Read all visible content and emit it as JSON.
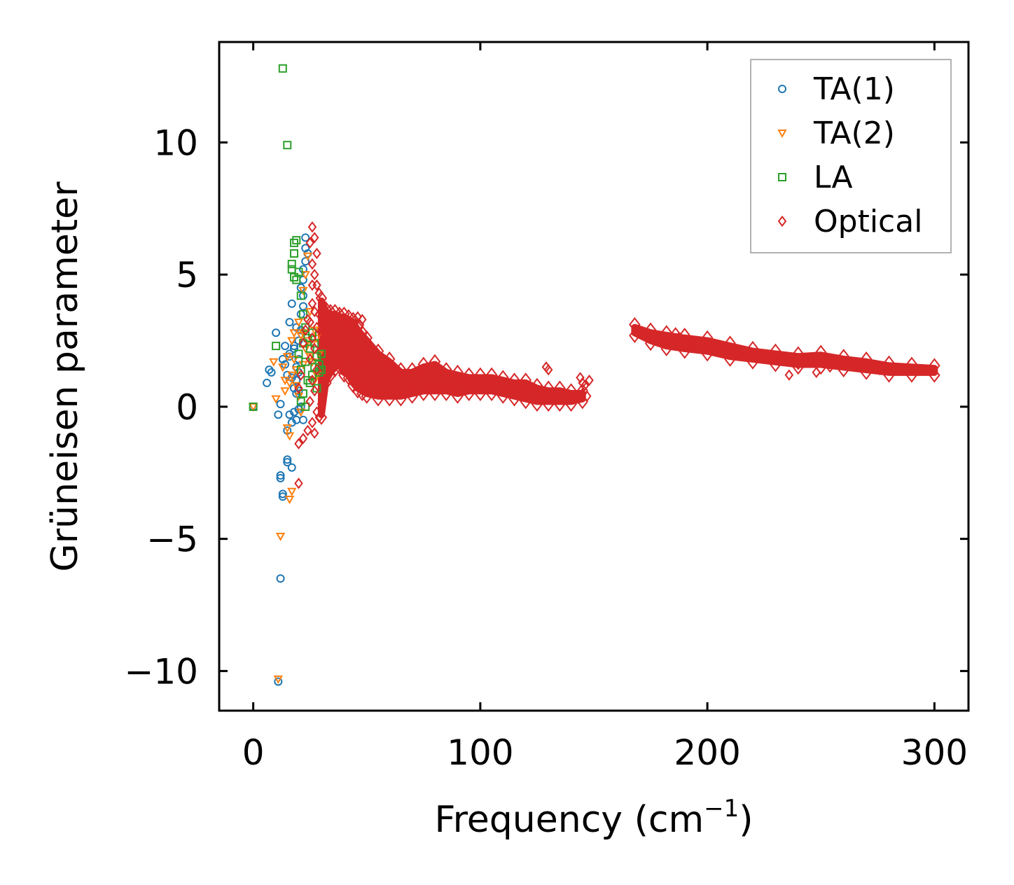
{
  "chart_data": {
    "type": "scatter",
    "title": "",
    "xlabel": "Frequency (cm",
    "xlabel_sup": "−1",
    "xlabel_close": ")",
    "ylabel": "Grüneisen parameter",
    "xlim": [
      -15,
      315
    ],
    "ylim": [
      -11.5,
      13.8
    ],
    "x_ticks": [
      0,
      100,
      200,
      300
    ],
    "x_tick_labels": [
      "0",
      "100",
      "200",
      "300"
    ],
    "y_ticks": [
      -10,
      -5,
      0,
      5,
      10
    ],
    "y_tick_labels": [
      "−10",
      "−5",
      "0",
      "5",
      "10"
    ],
    "grid": false,
    "legend_position": "top-right",
    "series": [
      {
        "name": "TA(1)",
        "marker": "circle",
        "color": "#1f77b4",
        "points": [
          [
            0,
            0
          ],
          [
            10,
            2.8
          ],
          [
            8,
            1.3
          ],
          [
            7,
            1.4
          ],
          [
            6,
            0.9
          ],
          [
            11,
            -0.3
          ],
          [
            12,
            0.1
          ],
          [
            12,
            -2.6
          ],
          [
            12,
            -2.7
          ],
          [
            13,
            -3.4
          ],
          [
            13,
            -3.3
          ],
          [
            15,
            -2.0
          ],
          [
            15,
            -2.1
          ],
          [
            17,
            -2.3
          ],
          [
            15,
            -0.9
          ],
          [
            12,
            -6.5
          ],
          [
            11,
            -10.4
          ],
          [
            14,
            1.6
          ],
          [
            16,
            2.0
          ],
          [
            17,
            3.9
          ],
          [
            16,
            3.2
          ],
          [
            18,
            2.2
          ],
          [
            19,
            1.0
          ],
          [
            20,
            0.6
          ],
          [
            21,
            4.5
          ],
          [
            22,
            5.2
          ],
          [
            23,
            6.4
          ],
          [
            22,
            3.8
          ],
          [
            20,
            2.5
          ],
          [
            19,
            1.5
          ],
          [
            21,
            0.0
          ],
          [
            22,
            -0.5
          ],
          [
            18,
            -0.2
          ],
          [
            17,
            -0.6
          ],
          [
            24,
            5.8
          ],
          [
            20,
            1.8
          ],
          [
            21,
            2.9
          ],
          [
            19,
            0.5
          ],
          [
            23,
            6.0
          ],
          [
            22,
            4.8
          ],
          [
            18,
            2.3
          ],
          [
            16,
            1.9
          ],
          [
            20,
            -0.1
          ],
          [
            13,
            1.8
          ],
          [
            14,
            2.3
          ],
          [
            15,
            1.2
          ],
          [
            17,
            1.1
          ],
          [
            19,
            3.0
          ],
          [
            21,
            3.5
          ],
          [
            23,
            5.5
          ],
          [
            22,
            4.2
          ],
          [
            20,
            1.3
          ],
          [
            18,
            0.7
          ],
          [
            16,
            -0.3
          ],
          [
            19,
            -0.5
          ]
        ]
      },
      {
        "name": "TA(2)",
        "marker": "triangle-down",
        "color": "#ff7f0e",
        "points": [
          [
            0,
            0
          ],
          [
            9,
            1.7
          ],
          [
            10,
            0.3
          ],
          [
            12,
            -4.9
          ],
          [
            11,
            -10.3
          ],
          [
            16,
            -3.5
          ],
          [
            17,
            -3.2
          ],
          [
            15,
            -0.8
          ],
          [
            16,
            -1.1
          ],
          [
            14,
            1.0
          ],
          [
            15,
            1.9
          ],
          [
            17,
            2.5
          ],
          [
            18,
            2.8
          ],
          [
            19,
            1.4
          ],
          [
            20,
            3.2
          ],
          [
            21,
            2.7
          ],
          [
            22,
            1.6
          ],
          [
            23,
            2.2
          ],
          [
            24,
            2.5
          ],
          [
            25,
            1.9
          ],
          [
            26,
            2.4
          ],
          [
            27,
            2.9
          ],
          [
            28,
            1.2
          ],
          [
            29,
            2.0
          ],
          [
            20,
            0.4
          ],
          [
            22,
            4.4
          ],
          [
            23,
            5.0
          ],
          [
            24,
            5.7
          ],
          [
            25,
            3.6
          ],
          [
            18,
            1.8
          ],
          [
            16,
            0.9
          ],
          [
            21,
            -0.2
          ],
          [
            19,
            0.8
          ],
          [
            13,
            1.5
          ],
          [
            14,
            0.6
          ],
          [
            26,
            1.7
          ],
          [
            27,
            1.0
          ],
          [
            28,
            2.6
          ],
          [
            22,
            2.8
          ],
          [
            17,
            1.2
          ]
        ]
      },
      {
        "name": "LA",
        "marker": "square",
        "color": "#2ca02c",
        "points": [
          [
            0,
            0
          ],
          [
            13,
            12.8
          ],
          [
            15,
            9.9
          ],
          [
            10,
            2.3
          ],
          [
            18,
            6.2
          ],
          [
            19,
            6.3
          ],
          [
            18,
            5.8
          ],
          [
            17,
            5.4
          ],
          [
            17,
            5.2
          ],
          [
            18,
            4.9
          ],
          [
            19,
            4.8
          ],
          [
            20,
            5.1
          ],
          [
            21,
            4.2
          ],
          [
            22,
            3.5
          ],
          [
            23,
            3.0
          ],
          [
            24,
            2.6
          ],
          [
            25,
            2.2
          ],
          [
            26,
            2.8
          ],
          [
            27,
            1.5
          ],
          [
            28,
            1.9
          ],
          [
            29,
            1.3
          ],
          [
            30,
            2.0
          ],
          [
            24,
            1.0
          ],
          [
            22,
            0.5
          ],
          [
            21,
            1.4
          ],
          [
            20,
            2.0
          ],
          [
            23,
            1.7
          ],
          [
            25,
            0.9
          ],
          [
            26,
            1.2
          ],
          [
            27,
            2.4
          ],
          [
            28,
            0.7
          ],
          [
            29,
            1.6
          ],
          [
            30,
            1.4
          ],
          [
            22,
            2.4
          ],
          [
            21,
            0.2
          ],
          [
            23,
            0.0
          ]
        ]
      },
      {
        "name": "Optical",
        "marker": "diamond",
        "color": "#d62728",
        "points": [
          [
            26,
            6.8
          ],
          [
            27,
            6.4
          ],
          [
            25,
            6.2
          ],
          [
            28,
            5.8
          ],
          [
            26,
            5.4
          ],
          [
            27,
            5.0
          ],
          [
            28,
            4.6
          ],
          [
            29,
            4.3
          ],
          [
            26,
            3.9
          ],
          [
            27,
            3.6
          ],
          [
            25,
            3.2
          ],
          [
            28,
            3.0
          ],
          [
            26,
            2.6
          ],
          [
            27,
            2.2
          ],
          [
            25,
            1.8
          ],
          [
            28,
            1.4
          ],
          [
            26,
            1.0
          ],
          [
            27,
            0.6
          ],
          [
            25,
            0.2
          ],
          [
            28,
            -0.2
          ],
          [
            26,
            -0.6
          ],
          [
            24,
            -0.9
          ],
          [
            22,
            -1.2
          ],
          [
            20,
            -1.4
          ],
          [
            20,
            -2.9
          ],
          [
            27,
            -1.0
          ],
          [
            29,
            -0.4
          ],
          [
            30,
            0.1
          ],
          [
            26,
            4.6
          ],
          [
            24,
            3.3
          ],
          [
            23,
            2.9
          ],
          [
            22,
            2.4
          ],
          [
            21,
            1.2
          ],
          [
            20,
            0.7
          ],
          [
            29,
            3.5
          ],
          [
            30,
            2.8
          ],
          [
            46,
            3.4
          ],
          [
            47,
            3.1
          ],
          [
            48,
            3.3
          ],
          [
            45,
            2.9
          ],
          [
            44,
            3.0
          ],
          [
            46,
            1.6
          ],
          [
            129,
            1.5
          ],
          [
            130,
            1.4
          ],
          [
            145,
            0.9
          ],
          [
            144,
            1.1
          ],
          [
            146,
            0.8
          ],
          [
            148,
            1.0
          ],
          [
            145,
            0.5
          ],
          [
            147,
            0.4
          ],
          [
            186,
            2.8
          ],
          [
            188,
            2.6
          ],
          [
            218,
            1.9
          ],
          [
            236,
            1.2
          ],
          [
            240,
            1.6
          ],
          [
            248,
            1.3
          ],
          [
            250,
            1.7
          ],
          [
            254,
            1.5
          ],
          [
            276,
            1.4
          ]
        ]
      }
    ],
    "optical_bands": [
      {
        "x": [
          30,
          32,
          34,
          36,
          38,
          40,
          42,
          44,
          46,
          48,
          50,
          55,
          60,
          65,
          70,
          75,
          80,
          85,
          90,
          95,
          100,
          105,
          110,
          115,
          120,
          125,
          130,
          135,
          140,
          145
        ],
        "y_high": [
          4.0,
          3.6,
          3.5,
          3.5,
          3.4,
          3.4,
          3.3,
          3.2,
          2.9,
          2.7,
          2.5,
          2.0,
          1.7,
          1.3,
          1.3,
          1.5,
          1.6,
          1.3,
          1.2,
          1.1,
          1.1,
          1.1,
          1.0,
          0.9,
          0.9,
          0.7,
          0.6,
          0.6,
          0.5,
          0.5
        ],
        "y_low": [
          -0.3,
          1.0,
          1.3,
          1.5,
          1.6,
          1.3,
          1.2,
          0.9,
          0.7,
          0.6,
          0.5,
          0.4,
          0.4,
          0.4,
          0.5,
          0.6,
          0.6,
          0.6,
          0.5,
          0.6,
          0.6,
          0.6,
          0.5,
          0.4,
          0.3,
          0.2,
          0.2,
          0.2,
          0.2,
          0.3
        ]
      },
      {
        "x": [
          168,
          175,
          182,
          190,
          200,
          210,
          220,
          230,
          240,
          250,
          260,
          270,
          280,
          290,
          300
        ],
        "y_high": [
          3.0,
          2.8,
          2.7,
          2.6,
          2.5,
          2.3,
          2.1,
          2.0,
          1.9,
          1.95,
          1.8,
          1.7,
          1.55,
          1.5,
          1.45
        ],
        "y_low": [
          2.8,
          2.5,
          2.3,
          2.2,
          2.1,
          1.9,
          1.8,
          1.7,
          1.6,
          1.6,
          1.5,
          1.4,
          1.3,
          1.3,
          1.3
        ]
      }
    ]
  }
}
